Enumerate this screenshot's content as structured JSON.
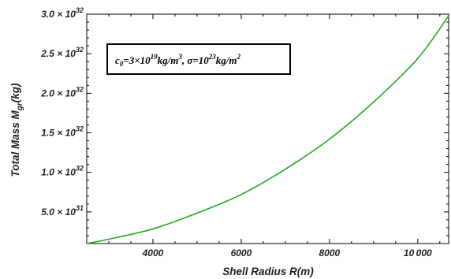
{
  "chart_data": {
    "type": "line",
    "xlabel": "Shell Radius R(m)",
    "ylabel": "Total Mass M_gr(kg)",
    "x_ticks": [
      4000,
      6000,
      8000,
      10000
    ],
    "x_tick_labels": [
      "4000",
      "6000",
      "8000",
      "10 000"
    ],
    "y_ticks": [
      5e+31,
      1e+32,
      1.5e+32,
      2e+32,
      2.5e+32,
      3e+32
    ],
    "y_tick_labels": [
      {
        "mantissa": "5.0",
        "exponent": "31"
      },
      {
        "mantissa": "1.0",
        "exponent": "32"
      },
      {
        "mantissa": "1.5",
        "exponent": "32"
      },
      {
        "mantissa": "2.0",
        "exponent": "32"
      },
      {
        "mantissa": "2.5",
        "exponent": "32"
      },
      {
        "mantissa": "3.0",
        "exponent": "32"
      }
    ],
    "xlim": [
      2500,
      10700
    ],
    "ylim": [
      1e+31,
      3e+32
    ],
    "grid": false,
    "annotation": "c0=3×10^19 kg/m^3, σ=10^23 kg/m^2",
    "series": [
      {
        "color": "#22aa22",
        "x": [
          2500,
          3000,
          4000,
          5000,
          6000,
          7000,
          8000,
          9000,
          10000,
          10700
        ],
        "y": [
          1e+31,
          1.55e+31,
          2.85e+31,
          4.85e+31,
          7.2e+31,
          1.04e+32,
          1.42e+32,
          1.89e+32,
          2.44e+32,
          2.98e+32
        ]
      }
    ]
  }
}
